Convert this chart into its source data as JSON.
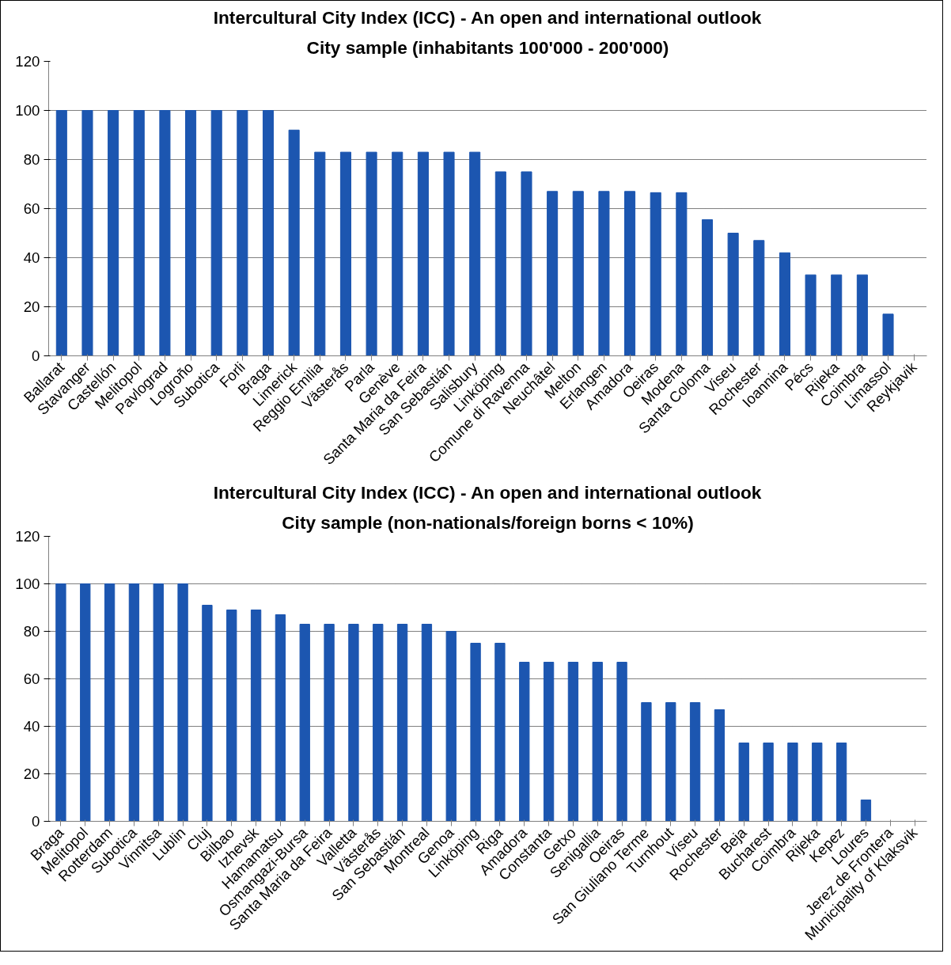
{
  "chart_data": [
    {
      "type": "bar",
      "title": "Intercultural City Index (ICC) - An open and international outlook",
      "subtitle": "City sample (inhabitants 100'000 - 200'000)",
      "categories": [
        "Ballarat",
        "Stavanger",
        "Castellón",
        "Melitopol",
        "Pavlograd",
        "Logroño",
        "Subotica",
        "Forli",
        "Braga",
        "Limerick",
        "Reggio Emilia",
        "Västerås",
        "Parla",
        "Genève",
        "Santa Maria da Feira",
        "San Sebastián",
        "Salisbury",
        "Linköping",
        "Comune di Ravenna",
        "Neuchâtel",
        "Melton",
        "Erlangen",
        "Amadora",
        "Oeiras",
        "Modena",
        "Santa Coloma",
        "Viseu",
        "Rochester",
        "Ioannina",
        "Pécs",
        "Rijeka",
        "Coimbra",
        "Limassol",
        "Reykjavik"
      ],
      "values": [
        100,
        100,
        100,
        100,
        100,
        100,
        100,
        100,
        100,
        92,
        83,
        83,
        83,
        83,
        83,
        83,
        83,
        75,
        75,
        67,
        67,
        67,
        67,
        66.5,
        66.5,
        55.5,
        50,
        47,
        42,
        33,
        33,
        33,
        17,
        0
      ],
      "color": "#1c56b0",
      "ylim": [
        0,
        120
      ],
      "yticks": [
        0,
        20,
        40,
        60,
        80,
        100,
        120
      ],
      "grid": "y"
    },
    {
      "type": "bar",
      "title": "Intercultural City Index (ICC) - An open and international outlook",
      "subtitle": "City sample (non-nationals/foreign borns < 10%)",
      "categories": [
        "Braga",
        "Melitopol",
        "Rotterdam",
        "Subotica",
        "Vinnitsa",
        "Lublin",
        "Cluj",
        "Bilbao",
        "Izhevsk",
        "Hamamatsu",
        "Osmangazi-Bursa",
        "Santa Maria da Feira",
        "Valletta",
        "Västerås",
        "San Sebastián",
        "Montreal",
        "Genoa",
        "Linköping",
        "Riga",
        "Amadora",
        "Constanta",
        "Getxo",
        "Senigallia",
        "Oeiras",
        "San Giuliano Terme",
        "Turnhout",
        "Viseu",
        "Rochester",
        "Beja",
        "Bucharest",
        "Coimbra",
        "Rijeka",
        "Kepez",
        "Loures",
        "Jerez de Frontera",
        "Municipality of Klaksvik"
      ],
      "values": [
        100,
        100,
        100,
        100,
        100,
        100,
        91,
        89,
        89,
        87,
        83,
        83,
        83,
        83,
        83,
        83,
        80,
        75,
        75,
        67,
        67,
        67,
        67,
        67,
        50,
        50,
        50,
        47,
        33,
        33,
        33,
        33,
        33,
        9,
        0,
        0
      ],
      "color": "#1c56b0",
      "ylim": [
        0,
        120
      ],
      "yticks": [
        0,
        20,
        40,
        60,
        80,
        100,
        120
      ],
      "grid": "y"
    }
  ]
}
